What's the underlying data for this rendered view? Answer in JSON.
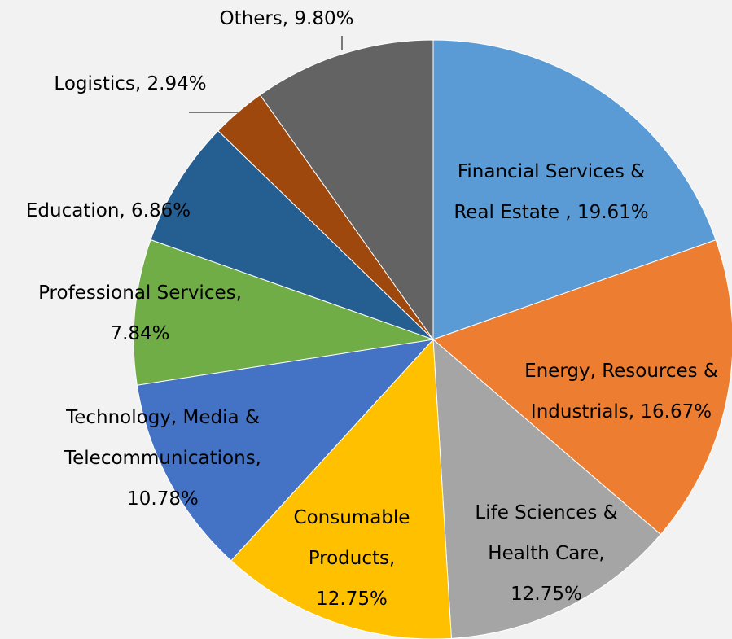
{
  "chart_data": {
    "type": "pie",
    "values": [
      19.61,
      16.67,
      12.75,
      12.75,
      10.78,
      7.84,
      6.86,
      2.94,
      9.8
    ],
    "value_labels": [
      "Financial Services & Real Estate , 19.61%",
      "Energy, Resources & Industrials, 16.67%",
      "Life Sciences & Health Care, 12.75%",
      "Consumable Products, 12.75%",
      "Technology, Media & Telecommunications, 10.78%",
      "Professional Services, 7.84%",
      "Education, 6.86%",
      "Logistics, 2.94%",
      "Others, 9.80%"
    ],
    "colors": [
      "#5b9bd5",
      "#ed7d31",
      "#a5a5a5",
      "#ffc000",
      "#4472c4",
      "#70ad47",
      "#255e91",
      "#9e480e",
      "#636363"
    ]
  }
}
